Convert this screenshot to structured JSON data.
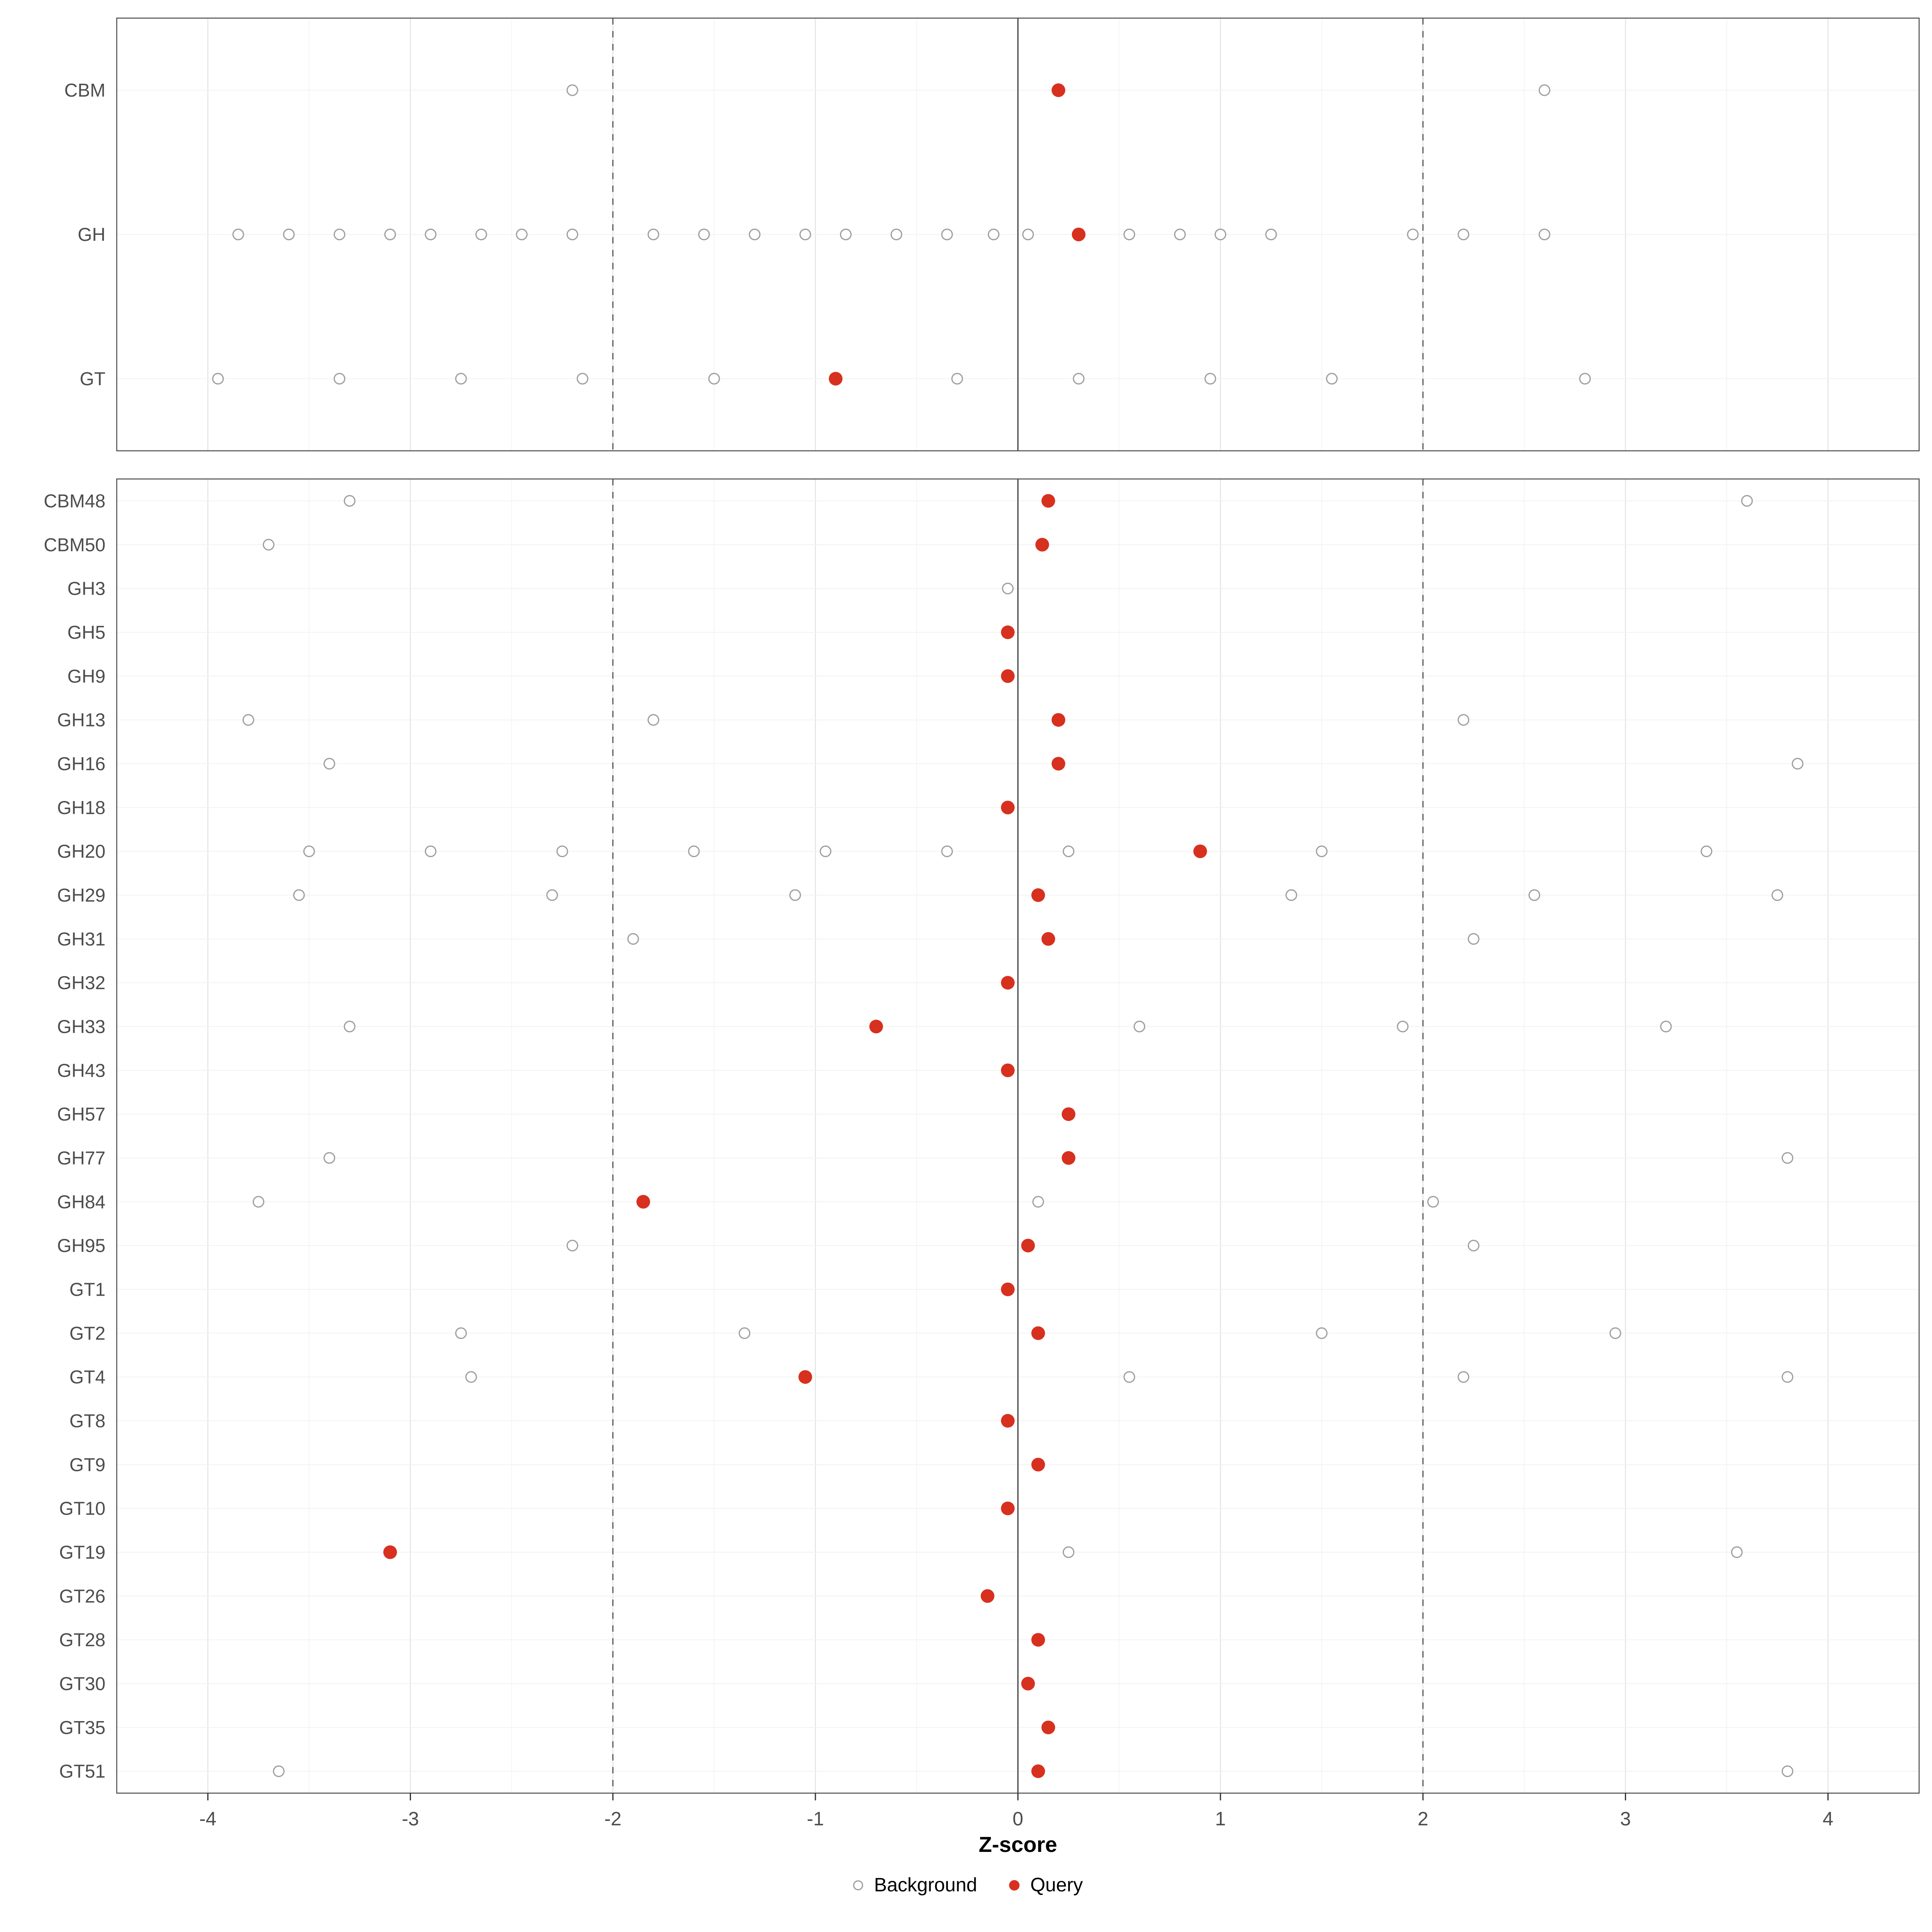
{
  "chart_data": {
    "type": "scatter",
    "title": "",
    "xlabel": "Z-score",
    "ylabel": "",
    "xlim": [
      -4.45,
      4.45
    ],
    "x_ticks": [
      -4,
      -3,
      -2,
      -1,
      0,
      1,
      2,
      3,
      4
    ],
    "grid": true,
    "legend_position": "bottom",
    "legend_labels": [
      "Background",
      "Query"
    ],
    "reference_lines": {
      "solid": 0,
      "dashed": [
        -2,
        2
      ]
    },
    "colors": {
      "query_fill": "#d7301f",
      "background_stroke": "#9e9e9e",
      "panel_border": "#4d4d4d",
      "axis_text": "#4d4d4d",
      "grid_major": "#e4e4e4",
      "grid_minor": "#f4f4f4"
    },
    "panels": [
      {
        "name": "family-class-panel",
        "rows": [
          {
            "label": "CBM",
            "background": [
              -2.2,
              2.6
            ],
            "query": [
              0.2
            ]
          },
          {
            "label": "GH",
            "background": [
              -3.85,
              -3.6,
              -3.35,
              -3.1,
              -2.9,
              -2.65,
              -2.45,
              -2.2,
              -1.8,
              -1.55,
              -1.3,
              -1.05,
              -0.85,
              -0.6,
              -0.35,
              -0.12,
              0.05,
              0.55,
              0.8,
              1.0,
              1.25,
              1.95,
              2.2,
              2.6
            ],
            "query": [
              0.3
            ]
          },
          {
            "label": "GT",
            "background": [
              -3.95,
              -3.35,
              -2.75,
              -2.15,
              -1.5,
              -0.3,
              0.3,
              0.95,
              1.55,
              2.8
            ],
            "query": [
              -0.9
            ]
          }
        ]
      },
      {
        "name": "family-detail-panel",
        "rows": [
          {
            "label": "CBM48",
            "background": [
              -3.3,
              3.6
            ],
            "query": [
              0.15
            ]
          },
          {
            "label": "CBM50",
            "background": [
              -3.7
            ],
            "query": [
              0.12
            ]
          },
          {
            "label": "GH3",
            "background": [
              -0.05
            ],
            "query": []
          },
          {
            "label": "GH5",
            "background": [],
            "query": [
              -0.05
            ]
          },
          {
            "label": "GH9",
            "background": [],
            "query": [
              -0.05
            ]
          },
          {
            "label": "GH13",
            "background": [
              -3.8,
              -1.8,
              2.2
            ],
            "query": [
              0.2
            ]
          },
          {
            "label": "GH16",
            "background": [
              -3.4,
              3.85
            ],
            "query": [
              0.2
            ]
          },
          {
            "label": "GH18",
            "background": [],
            "query": [
              -0.05
            ]
          },
          {
            "label": "GH20",
            "background": [
              -3.5,
              -2.9,
              -2.25,
              -1.6,
              -0.95,
              -0.35,
              0.25,
              1.5,
              3.4
            ],
            "query": [
              0.9
            ]
          },
          {
            "label": "GH29",
            "background": [
              -3.55,
              -2.3,
              -1.1,
              1.35,
              2.55,
              3.75
            ],
            "query": [
              0.1
            ]
          },
          {
            "label": "GH31",
            "background": [
              -1.9,
              2.25
            ],
            "query": [
              0.15
            ]
          },
          {
            "label": "GH32",
            "background": [],
            "query": [
              -0.05
            ]
          },
          {
            "label": "GH33",
            "background": [
              -3.3,
              0.6,
              1.9,
              3.2
            ],
            "query": [
              -0.7
            ]
          },
          {
            "label": "GH43",
            "background": [],
            "query": [
              -0.05
            ]
          },
          {
            "label": "GH57",
            "background": [],
            "query": [
              0.25
            ]
          },
          {
            "label": "GH77",
            "background": [
              -3.4,
              3.8
            ],
            "query": [
              0.25
            ]
          },
          {
            "label": "GH84",
            "background": [
              -3.75,
              0.1,
              2.05
            ],
            "query": [
              -1.85
            ]
          },
          {
            "label": "GH95",
            "background": [
              -2.2,
              2.25
            ],
            "query": [
              0.05
            ]
          },
          {
            "label": "GT1",
            "background": [],
            "query": [
              -0.05
            ]
          },
          {
            "label": "GT2",
            "background": [
              -2.75,
              -1.35,
              1.5,
              2.95
            ],
            "query": [
              0.1
            ]
          },
          {
            "label": "GT4",
            "background": [
              -2.7,
              0.55,
              2.2,
              3.8
            ],
            "query": [
              -1.05
            ]
          },
          {
            "label": "GT8",
            "background": [],
            "query": [
              -0.05
            ]
          },
          {
            "label": "GT9",
            "background": [],
            "query": [
              0.1
            ]
          },
          {
            "label": "GT10",
            "background": [],
            "query": [
              -0.05
            ]
          },
          {
            "label": "GT19",
            "background": [
              0.25,
              3.55
            ],
            "query": [
              -3.1
            ]
          },
          {
            "label": "GT26",
            "background": [],
            "query": [
              -0.15
            ]
          },
          {
            "label": "GT28",
            "background": [],
            "query": [
              0.1
            ]
          },
          {
            "label": "GT30",
            "background": [],
            "query": [
              0.05
            ]
          },
          {
            "label": "GT35",
            "background": [],
            "query": [
              0.15
            ]
          },
          {
            "label": "GT51",
            "background": [
              -3.65,
              3.8
            ],
            "query": [
              0.1
            ]
          }
        ]
      }
    ]
  }
}
